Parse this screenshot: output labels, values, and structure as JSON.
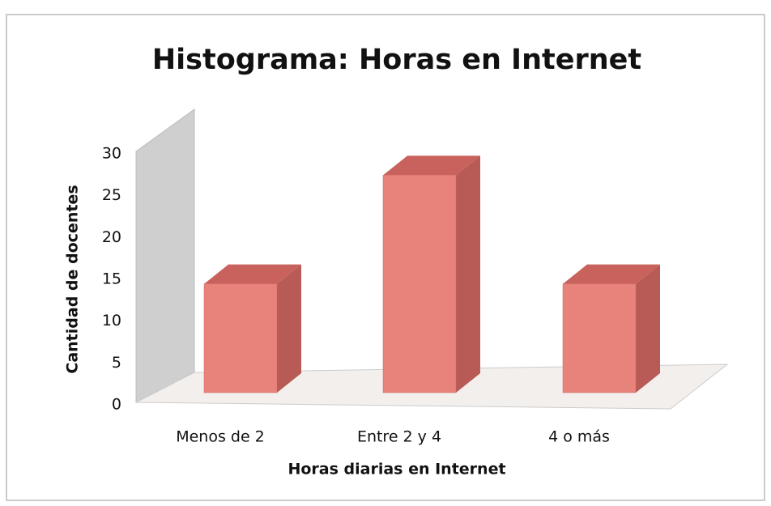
{
  "chart_data": {
    "type": "bar",
    "title": "Histograma: Horas en Internet",
    "x_label": "Horas diarias en Internet",
    "y_label": "Cantidad de docentes",
    "categories": [
      "Menos de 2",
      "Entre 2 y 4",
      "4 o más"
    ],
    "values": [
      13,
      26,
      13
    ],
    "color": "#e8837c",
    "ylim": [
      0,
      30
    ],
    "yticks": [
      0,
      5,
      10,
      15,
      20,
      25,
      30
    ],
    "grid": false
  }
}
